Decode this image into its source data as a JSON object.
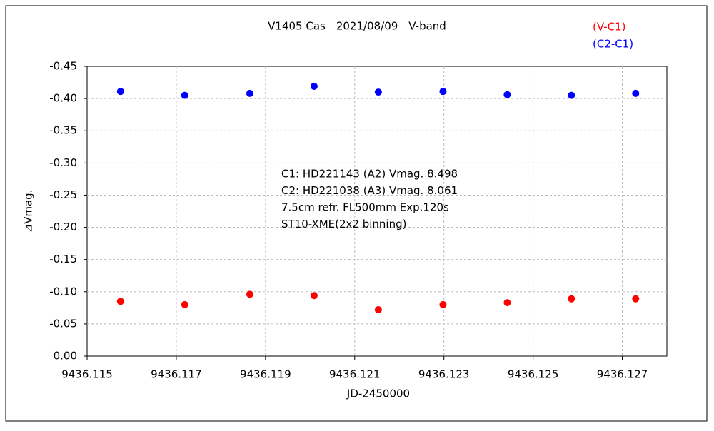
{
  "chart_data": {
    "type": "scatter",
    "title": "V1405 Cas　2021/08/09　V-band",
    "x_label": "JD-2450000",
    "y_label": "⊿Vmag.",
    "annotations": [
      "C1: HD221143 (A2) Vmag. 8.498",
      "C2: HD221038 (A3) Vmag. 8.061",
      "7.5cm refr. FL500mm Exp.120s",
      "ST10-XME(2x2 binning)"
    ],
    "xlim": [
      9436.115,
      9436.128
    ],
    "xticks": [
      9436.115,
      9436.117,
      9436.119,
      9436.121,
      9436.123,
      9436.125,
      9436.127
    ],
    "ylim": [
      0,
      -0.45
    ],
    "yticks": [
      {
        "value": 0,
        "label": "0.00"
      },
      {
        "value": -0.05,
        "label": "-0.05"
      },
      {
        "value": -0.1,
        "label": "-0.10"
      },
      {
        "value": -0.15,
        "label": "-0.15"
      },
      {
        "value": -0.2,
        "label": "-0.20"
      },
      {
        "value": -0.25,
        "label": "-0.25"
      },
      {
        "value": -0.3,
        "label": "-0.30"
      },
      {
        "value": -0.35,
        "label": "-0.35"
      },
      {
        "value": -0.4,
        "label": "-0.40"
      },
      {
        "value": -0.45,
        "label": "-0.45"
      }
    ],
    "grid": true,
    "legend": "top-right",
    "series": [
      {
        "name": "(V-C1)",
        "color": "#ff0000",
        "x": [
          9436.11575,
          9436.11719,
          9436.11865,
          9436.12009,
          9436.12153,
          9436.12298,
          9436.12442,
          9436.12586,
          9436.1273
        ],
        "values": [
          -0.085,
          -0.08,
          -0.096,
          -0.094,
          -0.072,
          -0.08,
          -0.083,
          -0.089,
          -0.089
        ]
      },
      {
        "name": "(C2-C1)",
        "color": "#0000ff",
        "x": [
          9436.11575,
          9436.11719,
          9436.11865,
          9436.12009,
          9436.12153,
          9436.12298,
          9436.12442,
          9436.12586,
          9436.1273
        ],
        "values": [
          -0.411,
          -0.405,
          -0.408,
          -0.419,
          -0.41,
          -0.411,
          -0.406,
          -0.405,
          -0.408
        ]
      }
    ]
  }
}
